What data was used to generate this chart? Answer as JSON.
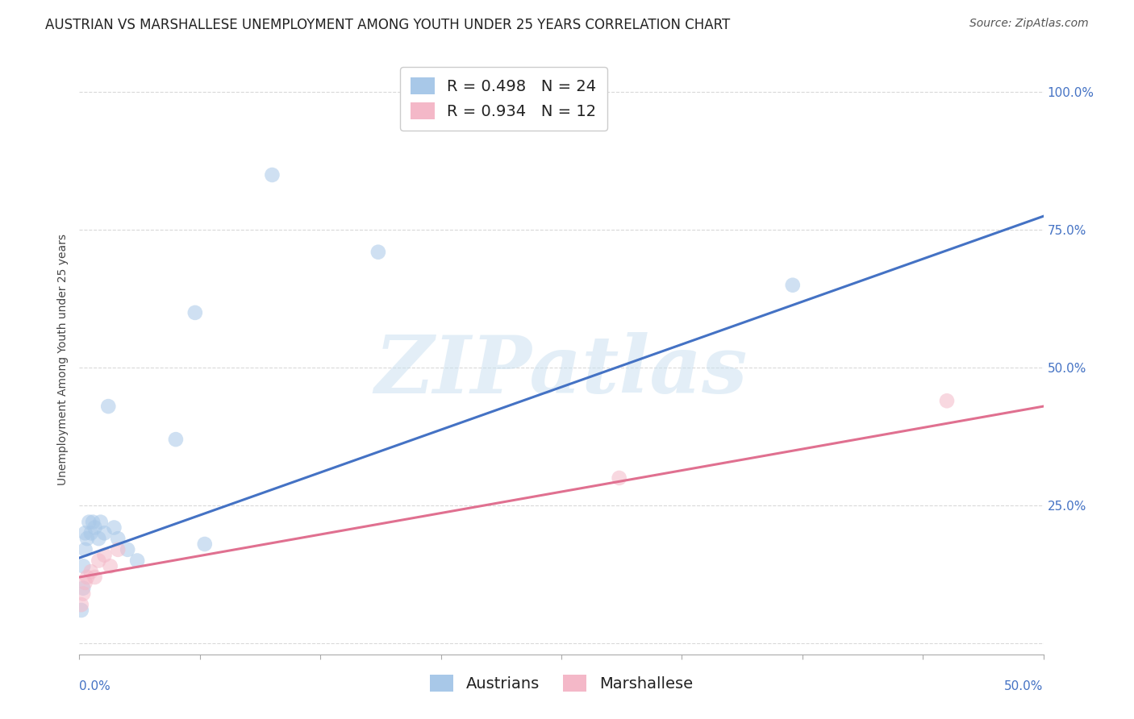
{
  "title": "AUSTRIAN VS MARSHALLESE UNEMPLOYMENT AMONG YOUTH UNDER 25 YEARS CORRELATION CHART",
  "source": "Source: ZipAtlas.com",
  "ylabel": "Unemployment Among Youth under 25 years",
  "yticks": [
    0.0,
    0.25,
    0.5,
    0.75,
    1.0
  ],
  "ytick_labels": [
    "",
    "25.0%",
    "50.0%",
    "75.0%",
    "100.0%"
  ],
  "xlim": [
    0.0,
    0.5
  ],
  "ylim": [
    -0.02,
    1.05
  ],
  "legend_entries_blue": "R = 0.498   N = 24",
  "legend_entries_pink": "R = 0.934   N = 12",
  "legend_bottom": [
    "Austrians",
    "Marshallese"
  ],
  "blue_scatter_color": "#a8c8e8",
  "pink_scatter_color": "#f4b8c8",
  "blue_line_color": "#4472c4",
  "pink_line_color": "#e07090",
  "watermark_text": "ZIPatlas",
  "watermark_color": "#c8dff0",
  "title_fontsize": 12,
  "source_fontsize": 10,
  "axis_label_fontsize": 10,
  "tick_fontsize": 11,
  "legend_fontsize": 14,
  "scatter_size": 180,
  "scatter_alpha": 0.55,
  "grid_color": "#d0d0d0",
  "grid_alpha": 0.8,
  "background_color": "#ffffff",
  "austrians_x": [
    0.001,
    0.002,
    0.002,
    0.003,
    0.003,
    0.004,
    0.005,
    0.006,
    0.007,
    0.008,
    0.01,
    0.011,
    0.013,
    0.015,
    0.018,
    0.02,
    0.025,
    0.03,
    0.05,
    0.06,
    0.065,
    0.1,
    0.155,
    0.37
  ],
  "austrians_y": [
    0.06,
    0.1,
    0.14,
    0.17,
    0.2,
    0.19,
    0.22,
    0.2,
    0.22,
    0.21,
    0.19,
    0.22,
    0.2,
    0.43,
    0.21,
    0.19,
    0.17,
    0.15,
    0.37,
    0.6,
    0.18,
    0.85,
    0.71,
    0.65
  ],
  "marshallese_x": [
    0.001,
    0.002,
    0.003,
    0.004,
    0.006,
    0.008,
    0.01,
    0.013,
    0.016,
    0.02,
    0.28,
    0.45
  ],
  "marshallese_y": [
    0.07,
    0.09,
    0.11,
    0.12,
    0.13,
    0.12,
    0.15,
    0.16,
    0.14,
    0.17,
    0.3,
    0.44
  ],
  "blue_line_x0": 0.0,
  "blue_line_y0": 0.155,
  "blue_line_x1": 0.5,
  "blue_line_y1": 0.775,
  "pink_line_x0": 0.0,
  "pink_line_y0": 0.12,
  "pink_line_x1": 0.5,
  "pink_line_y1": 0.43
}
